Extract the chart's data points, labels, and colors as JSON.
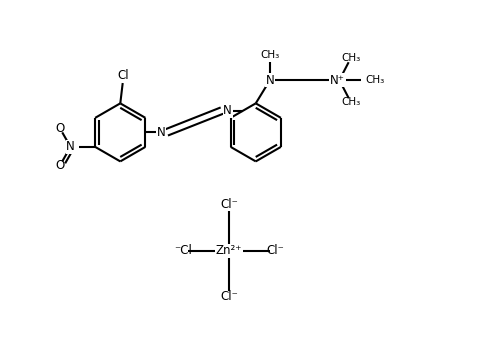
{
  "bg_color": "#ffffff",
  "line_color": "#000000",
  "line_width": 1.5,
  "font_size": 8.5,
  "figsize": [
    4.97,
    3.47
  ],
  "dpi": 100,
  "xlim": [
    0,
    10
  ],
  "ylim": [
    0,
    7
  ]
}
